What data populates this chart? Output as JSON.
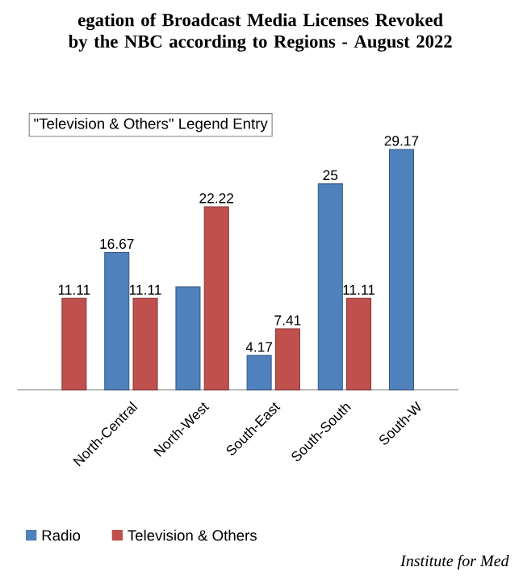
{
  "chart_data": {
    "type": "bar",
    "title": "egation of Broadcast Media Licenses Revoked by the NBC according to Regions - August 2022",
    "categories": [
      null,
      "North-Central",
      "North-West",
      "South-East",
      "South-South",
      "South-W"
    ],
    "series": [
      {
        "name": "Radio",
        "color": "#4f81bd",
        "values": [
          null,
          16.67,
          12.5,
          4.17,
          25,
          29.17
        ],
        "value_labels": [
          null,
          "16.67",
          null,
          "4.17",
          "25",
          "29.17"
        ]
      },
      {
        "name": "Television & Others",
        "color": "#c0504d",
        "values": [
          11.11,
          11.11,
          22.22,
          7.41,
          11.11,
          null
        ],
        "value_labels": [
          "11.11",
          "11.11",
          "22.22",
          "7.41",
          "11.11",
          null
        ]
      }
    ],
    "legend": "bottom",
    "annotations": [
      "\"Television & Others\" Legend Entry",
      "Institute for Med"
    ]
  }
}
